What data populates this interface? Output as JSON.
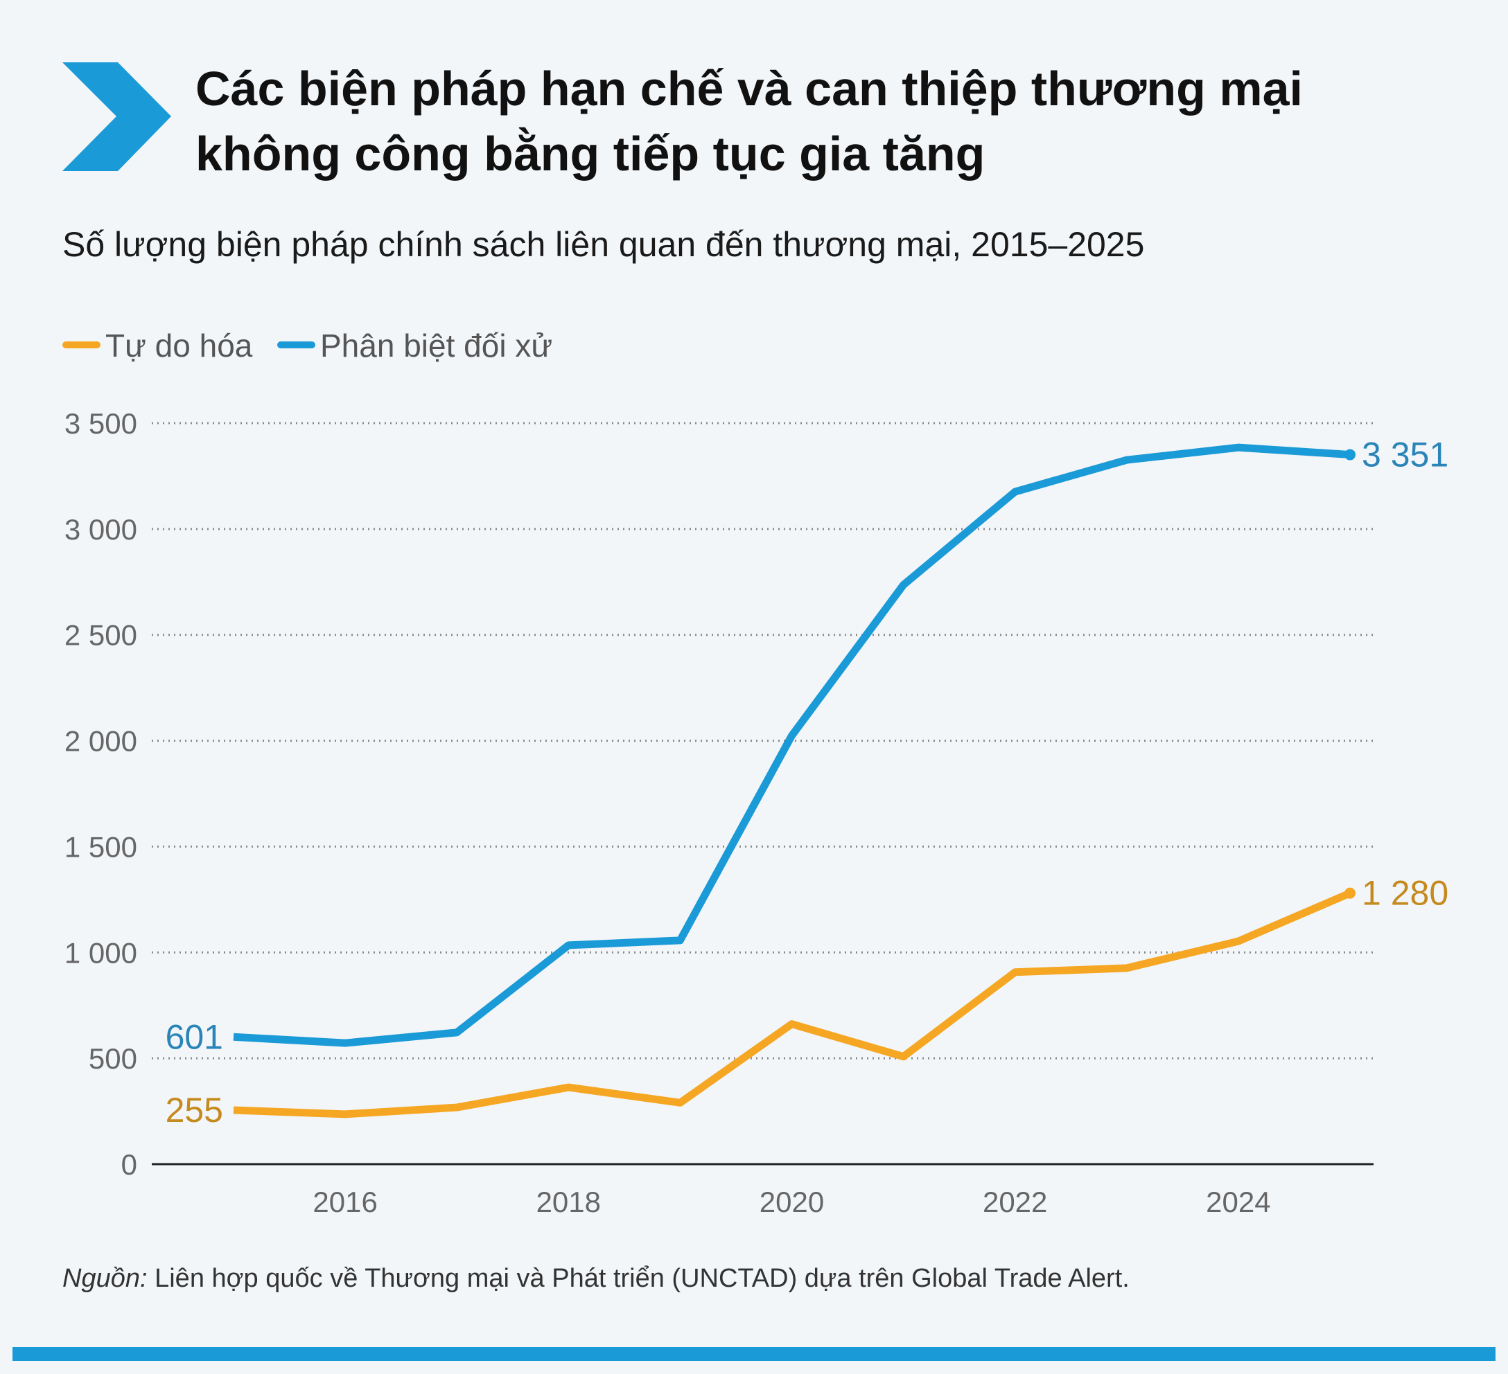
{
  "header": {
    "title_line1": "Các biện pháp hạn chế và can thiệp thương mại",
    "title_line2": "không công bằng tiếp tục gia tăng",
    "icon": "chevron-right-icon"
  },
  "source": {
    "label": "Nguồn:",
    "text": " Liên hợp quốc về Thương mại và Phát triển (UNCTAD) dựa trên Global Trade Alert."
  },
  "colors": {
    "liberalizing": "#f5a623",
    "discriminatory": "#1a9ad6",
    "accent_bar": "#1a9ad6"
  },
  "chart_data": {
    "type": "line",
    "title": "Số lượng biện pháp chính sách liên quan đến thương mại, 2015–2025",
    "xlabel": "",
    "ylabel": "",
    "x": [
      2015,
      2016,
      2017,
      2018,
      2019,
      2020,
      2021,
      2022,
      2023,
      2024,
      2025
    ],
    "x_ticks": [
      "2016",
      "2018",
      "2020",
      "2022",
      "2024"
    ],
    "x_tick_values": [
      2016,
      2018,
      2020,
      2022,
      2024
    ],
    "y_ticks": [
      "0",
      "500",
      "1 000",
      "1 500",
      "2 000",
      "2 500",
      "3 000",
      "3 500"
    ],
    "y_tick_values": [
      0,
      500,
      1000,
      1500,
      2000,
      2500,
      3000,
      3500
    ],
    "ylim": [
      0,
      3500
    ],
    "grid": true,
    "legend_position": "top-left",
    "series": [
      {
        "name": "Tự do hóa",
        "color": "#f5a623",
        "values": [
          255,
          236,
          268,
          363,
          290,
          662,
          508,
          907,
          926,
          1053,
          1280
        ],
        "start_label": "255",
        "end_label": "1 280",
        "label_color": "#c58a1e"
      },
      {
        "name": "Phân biệt đối xử",
        "color": "#1a9ad6",
        "values": [
          601,
          572,
          622,
          1034,
          1057,
          2024,
          2736,
          3176,
          3326,
          3385,
          3351
        ],
        "start_label": "601",
        "end_label": "3 351",
        "label_color": "#2a84b8"
      }
    ]
  }
}
